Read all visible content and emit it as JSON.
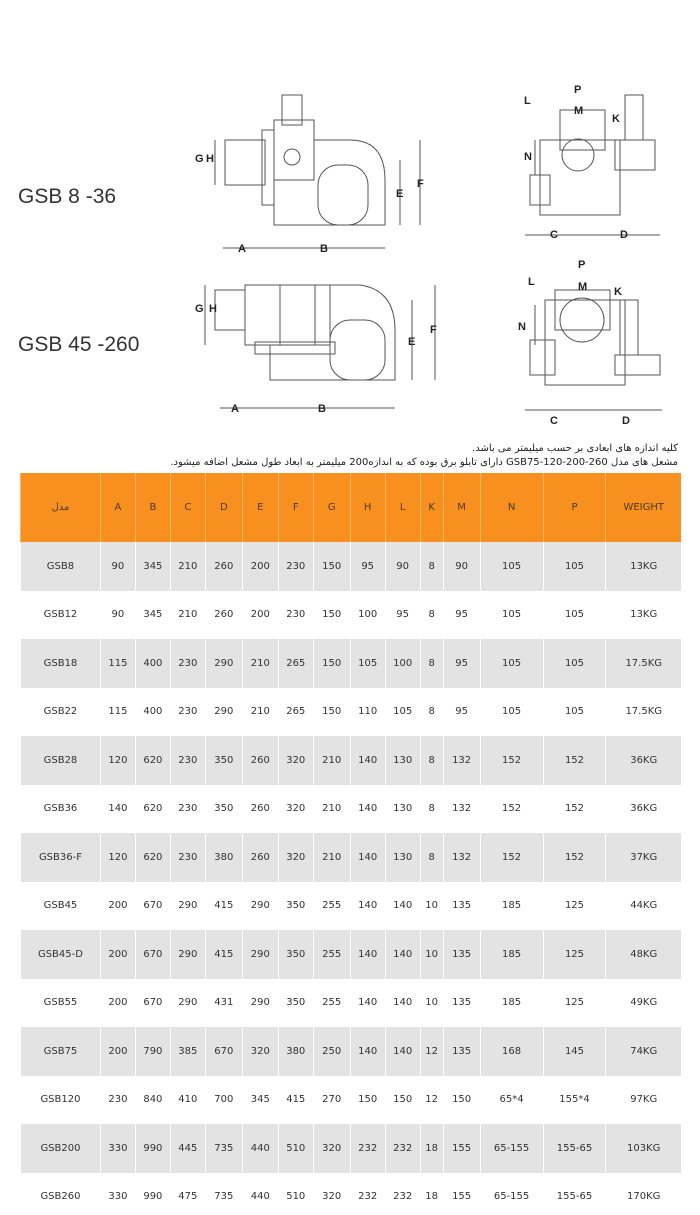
{
  "diagrams": [
    {
      "model": "GSB 8 -36",
      "side_labels": [
        "G",
        "H",
        "A",
        "B",
        "E",
        "F"
      ],
      "front_labels": [
        "P",
        "M",
        "L",
        "K",
        "N",
        "C",
        "D"
      ]
    },
    {
      "model": "GSB 45 -260",
      "side_labels": [
        "G",
        "H",
        "A",
        "B",
        "E",
        "F"
      ],
      "front_labels": [
        "P",
        "M",
        "L",
        "K",
        "N",
        "C",
        "D"
      ]
    }
  ],
  "notes": [
    "کلیه اندازه های ابعادی بر حسب میلیمتر می باشد.",
    "مشعل های مدل GSB75-120-200-260 دارای تابلو برق بوده که به اندازه200 میلیمتر به ابعاد طول مشعل اضافه میشود."
  ],
  "table": {
    "header_color": "#f7901e",
    "columns": [
      "مدل",
      "A",
      "B",
      "C",
      "D",
      "E",
      "F",
      "G",
      "H",
      "L",
      "K",
      "M",
      "N",
      "P",
      "WEIGHT"
    ],
    "rows": [
      [
        "GSB8",
        "90",
        "345",
        "210",
        "260",
        "200",
        "230",
        "150",
        "95",
        "90",
        "8",
        "90",
        "105",
        "105",
        "13KG"
      ],
      [
        "GSB12",
        "90",
        "345",
        "210",
        "260",
        "200",
        "230",
        "150",
        "100",
        "95",
        "8",
        "95",
        "105",
        "105",
        "13KG"
      ],
      [
        "GSB18",
        "115",
        "400",
        "230",
        "290",
        "210",
        "265",
        "150",
        "105",
        "100",
        "8",
        "95",
        "105",
        "105",
        "17.5KG"
      ],
      [
        "GSB22",
        "115",
        "400",
        "230",
        "290",
        "210",
        "265",
        "150",
        "110",
        "105",
        "8",
        "95",
        "105",
        "105",
        "17.5KG"
      ],
      [
        "GSB28",
        "120",
        "620",
        "230",
        "350",
        "260",
        "320",
        "210",
        "140",
        "130",
        "8",
        "132",
        "152",
        "152",
        "36KG"
      ],
      [
        "GSB36",
        "140",
        "620",
        "230",
        "350",
        "260",
        "320",
        "210",
        "140",
        "130",
        "8",
        "132",
        "152",
        "152",
        "36KG"
      ],
      [
        "GSB36-F",
        "120",
        "620",
        "230",
        "380",
        "260",
        "320",
        "210",
        "140",
        "130",
        "8",
        "132",
        "152",
        "152",
        "37KG"
      ],
      [
        "GSB45",
        "200",
        "670",
        "290",
        "415",
        "290",
        "350",
        "255",
        "140",
        "140",
        "10",
        "135",
        "185",
        "125",
        "44KG"
      ],
      [
        "GSB45-D",
        "200",
        "670",
        "290",
        "415",
        "290",
        "350",
        "255",
        "140",
        "140",
        "10",
        "135",
        "185",
        "125",
        "48KG"
      ],
      [
        "GSB55",
        "200",
        "670",
        "290",
        "431",
        "290",
        "350",
        "255",
        "140",
        "140",
        "10",
        "135",
        "185",
        "125",
        "49KG"
      ],
      [
        "GSB75",
        "200",
        "790",
        "385",
        "670",
        "320",
        "380",
        "250",
        "140",
        "140",
        "12",
        "135",
        "168",
        "145",
        "74KG"
      ],
      [
        "GSB120",
        "230",
        "840",
        "410",
        "700",
        "345",
        "415",
        "270",
        "150",
        "150",
        "12",
        "150",
        "65*4",
        "155*4",
        "97KG"
      ],
      [
        "GSB200",
        "330",
        "990",
        "445",
        "735",
        "440",
        "510",
        "320",
        "232",
        "232",
        "18",
        "155",
        "65-155",
        "155-65",
        "103KG"
      ],
      [
        "GSB260",
        "330",
        "990",
        "475",
        "735",
        "440",
        "510",
        "320",
        "232",
        "232",
        "18",
        "155",
        "65-155",
        "155-65",
        "170KG"
      ]
    ]
  }
}
